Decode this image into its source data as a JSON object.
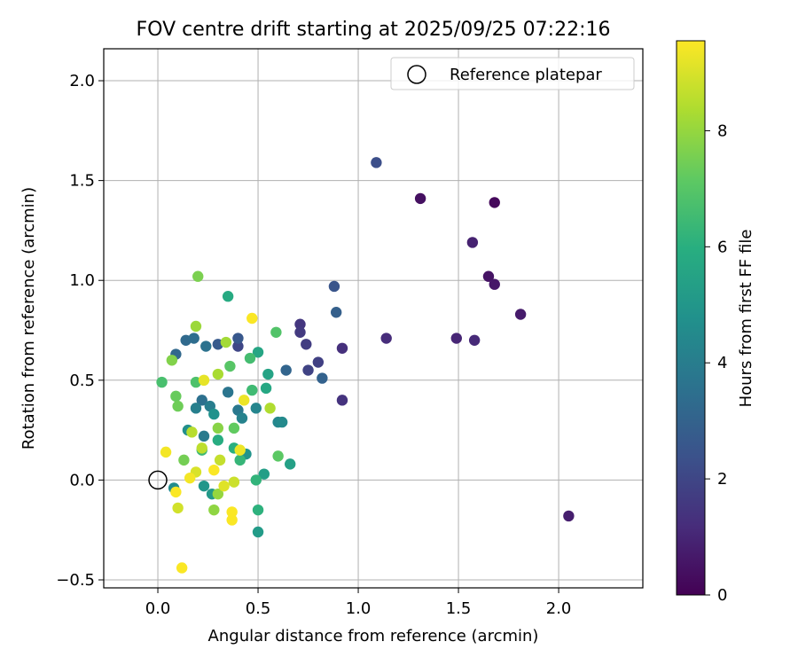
{
  "chart_data": {
    "type": "scatter",
    "title": "FOV centre drift starting at 2025/09/25 07:22:16",
    "xlabel": "Angular distance from reference (arcmin)",
    "ylabel": "Rotation from reference (arcmin)",
    "xlim": [
      -0.27,
      2.42
    ],
    "ylim": [
      -0.54,
      2.16
    ],
    "xticks": [
      0.0,
      0.5,
      1.0,
      1.5,
      2.0
    ],
    "xtick_labels": [
      "0.0",
      "0.5",
      "1.0",
      "1.5",
      "2.0"
    ],
    "yticks": [
      -0.5,
      0.0,
      0.5,
      1.0,
      1.5,
      2.0
    ],
    "ytick_labels": [
      "−0.5",
      "0.0",
      "0.5",
      "1.0",
      "1.5",
      "2.0"
    ],
    "grid": true,
    "legend": {
      "position": "top-right",
      "label": "Reference platepar",
      "marker": "hollow-circle"
    },
    "reference_point": {
      "x": 0.0,
      "y": 0.0
    },
    "colorbar": {
      "label": "Hours from first FF file",
      "range": [
        0,
        9.55
      ],
      "ticks": [
        0,
        2,
        4,
        6,
        8
      ],
      "tick_labels": [
        "0",
        "2",
        "4",
        "6",
        "8"
      ],
      "colormap": "viridis",
      "colors": [
        "#440154",
        "#472d7b",
        "#3b528b",
        "#2c728e",
        "#21918c",
        "#28ae80",
        "#5ec962",
        "#addc30",
        "#fde725"
      ]
    },
    "points": [
      {
        "x": 1.68,
        "y": 1.39,
        "h": 0.2
      },
      {
        "x": 1.31,
        "y": 1.41,
        "h": 0.4
      },
      {
        "x": 1.65,
        "y": 1.02,
        "h": 0.5
      },
      {
        "x": 1.68,
        "y": 0.98,
        "h": 0.6
      },
      {
        "x": 1.81,
        "y": 0.83,
        "h": 0.7
      },
      {
        "x": 2.05,
        "y": -0.18,
        "h": 0.8
      },
      {
        "x": 1.57,
        "y": 1.19,
        "h": 0.9
      },
      {
        "x": 1.49,
        "y": 0.71,
        "h": 1.0
      },
      {
        "x": 1.58,
        "y": 0.7,
        "h": 1.1
      },
      {
        "x": 1.14,
        "y": 0.71,
        "h": 1.2
      },
      {
        "x": 0.92,
        "y": 0.66,
        "h": 1.3
      },
      {
        "x": 0.92,
        "y": 0.4,
        "h": 1.4
      },
      {
        "x": 0.71,
        "y": 0.78,
        "h": 1.5
      },
      {
        "x": 0.71,
        "y": 0.74,
        "h": 1.6
      },
      {
        "x": 0.74,
        "y": 0.68,
        "h": 1.7
      },
      {
        "x": 0.8,
        "y": 0.59,
        "h": 1.8
      },
      {
        "x": 0.75,
        "y": 0.55,
        "h": 1.9
      },
      {
        "x": 0.4,
        "y": 0.67,
        "h": 2.0
      },
      {
        "x": 1.09,
        "y": 1.59,
        "h": 2.3
      },
      {
        "x": 0.88,
        "y": 0.97,
        "h": 2.5
      },
      {
        "x": 0.4,
        "y": 0.71,
        "h": 2.6
      },
      {
        "x": 0.3,
        "y": 0.68,
        "h": 2.7
      },
      {
        "x": 0.89,
        "y": 0.84,
        "h": 2.9
      },
      {
        "x": 0.82,
        "y": 0.51,
        "h": 3.0
      },
      {
        "x": 0.64,
        "y": 0.55,
        "h": 3.1
      },
      {
        "x": 0.09,
        "y": 0.63,
        "h": 3.2
      },
      {
        "x": 0.14,
        "y": 0.7,
        "h": 3.3
      },
      {
        "x": 0.18,
        "y": 0.71,
        "h": 3.4
      },
      {
        "x": 0.22,
        "y": 0.4,
        "h": 3.5
      },
      {
        "x": 0.24,
        "y": 0.67,
        "h": 3.6
      },
      {
        "x": 0.35,
        "y": 0.44,
        "h": 3.7
      },
      {
        "x": 0.4,
        "y": 0.35,
        "h": 3.8
      },
      {
        "x": 0.23,
        "y": 0.22,
        "h": 3.9
      },
      {
        "x": 0.26,
        "y": 0.37,
        "h": 4.0
      },
      {
        "x": 0.19,
        "y": 0.36,
        "h": 4.1
      },
      {
        "x": 0.42,
        "y": 0.31,
        "h": 4.2
      },
      {
        "x": 0.49,
        "y": 0.36,
        "h": 4.3
      },
      {
        "x": 0.6,
        "y": 0.29,
        "h": 4.4
      },
      {
        "x": 0.62,
        "y": 0.29,
        "h": 4.5
      },
      {
        "x": 0.08,
        "y": -0.04,
        "h": 4.6
      },
      {
        "x": 0.15,
        "y": 0.25,
        "h": 4.7
      },
      {
        "x": 0.28,
        "y": 0.33,
        "h": 4.8
      },
      {
        "x": 0.44,
        "y": 0.13,
        "h": 4.9
      },
      {
        "x": 0.23,
        "y": -0.03,
        "h": 5.0
      },
      {
        "x": 0.27,
        "y": -0.07,
        "h": 5.1
      },
      {
        "x": 0.5,
        "y": -0.26,
        "h": 5.2
      },
      {
        "x": 0.53,
        "y": 0.03,
        "h": 5.3
      },
      {
        "x": 0.66,
        "y": 0.08,
        "h": 5.4
      },
      {
        "x": 0.55,
        "y": 0.53,
        "h": 5.5
      },
      {
        "x": 0.5,
        "y": 0.64,
        "h": 5.6
      },
      {
        "x": 0.54,
        "y": 0.46,
        "h": 5.7
      },
      {
        "x": 0.35,
        "y": 0.92,
        "h": 5.8
      },
      {
        "x": 0.3,
        "y": 0.2,
        "h": 5.9
      },
      {
        "x": 0.38,
        "y": 0.16,
        "h": 6.0
      },
      {
        "x": 0.5,
        "y": -0.15,
        "h": 6.1
      },
      {
        "x": 0.49,
        "y": 0.0,
        "h": 6.2
      },
      {
        "x": 0.41,
        "y": 0.1,
        "h": 6.3
      },
      {
        "x": 0.22,
        "y": 0.15,
        "h": 6.4
      },
      {
        "x": 0.47,
        "y": 0.45,
        "h": 6.5
      },
      {
        "x": 0.46,
        "y": 0.61,
        "h": 6.6
      },
      {
        "x": 0.02,
        "y": 0.49,
        "h": 6.7
      },
      {
        "x": 0.19,
        "y": 0.49,
        "h": 6.8
      },
      {
        "x": 0.59,
        "y": 0.74,
        "h": 6.9
      },
      {
        "x": 0.36,
        "y": 0.57,
        "h": 7.0
      },
      {
        "x": 0.6,
        "y": 0.12,
        "h": 7.1
      },
      {
        "x": 0.38,
        "y": 0.26,
        "h": 7.2
      },
      {
        "x": 0.09,
        "y": 0.42,
        "h": 7.3
      },
      {
        "x": 0.1,
        "y": 0.37,
        "h": 7.4
      },
      {
        "x": 0.13,
        "y": 0.1,
        "h": 7.5
      },
      {
        "x": 0.2,
        "y": 1.02,
        "h": 7.6
      },
      {
        "x": 0.07,
        "y": 0.6,
        "h": 7.7
      },
      {
        "x": 0.3,
        "y": 0.26,
        "h": 7.8
      },
      {
        "x": 0.28,
        "y": -0.15,
        "h": 7.9
      },
      {
        "x": 0.3,
        "y": -0.07,
        "h": 8.0
      },
      {
        "x": 0.19,
        "y": 0.77,
        "h": 8.1
      },
      {
        "x": 0.34,
        "y": 0.69,
        "h": 8.2
      },
      {
        "x": 0.3,
        "y": 0.53,
        "h": 8.3
      },
      {
        "x": 0.56,
        "y": 0.36,
        "h": 8.4
      },
      {
        "x": 0.17,
        "y": 0.24,
        "h": 8.5
      },
      {
        "x": 0.22,
        "y": 0.16,
        "h": 8.6
      },
      {
        "x": 0.31,
        "y": 0.1,
        "h": 8.7
      },
      {
        "x": 0.38,
        "y": -0.01,
        "h": 8.8
      },
      {
        "x": 0.1,
        "y": -0.14,
        "h": 8.9
      },
      {
        "x": 0.19,
        "y": 0.04,
        "h": 9.0
      },
      {
        "x": 0.33,
        "y": -0.03,
        "h": 9.1
      },
      {
        "x": 0.23,
        "y": 0.5,
        "h": 9.2
      },
      {
        "x": 0.43,
        "y": 0.4,
        "h": 9.3
      },
      {
        "x": 0.41,
        "y": 0.15,
        "h": 9.3
      },
      {
        "x": 0.04,
        "y": 0.14,
        "h": 9.4
      },
      {
        "x": 0.16,
        "y": 0.01,
        "h": 9.4
      },
      {
        "x": 0.28,
        "y": 0.05,
        "h": 9.5
      },
      {
        "x": 0.09,
        "y": -0.06,
        "h": 9.5
      },
      {
        "x": 0.37,
        "y": -0.16,
        "h": 9.5
      },
      {
        "x": 0.37,
        "y": -0.2,
        "h": 9.5
      },
      {
        "x": 0.12,
        "y": -0.44,
        "h": 9.5
      },
      {
        "x": 0.47,
        "y": 0.81,
        "h": 9.5
      }
    ]
  }
}
